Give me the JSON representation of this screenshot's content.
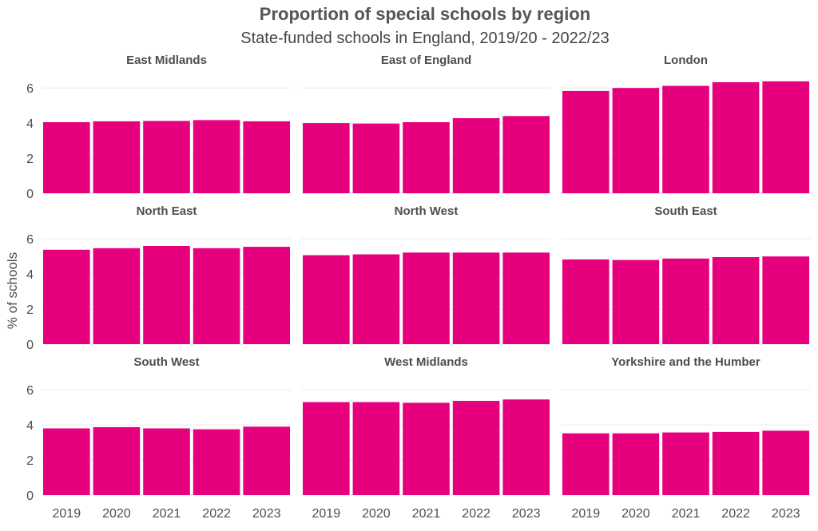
{
  "chart_data": {
    "type": "bar",
    "layout": "facet-grid-3x3",
    "title": "Proportion of special schools by region",
    "subtitle": "State-funded schools in England, 2019/20 - 2022/23",
    "xlabel": "",
    "ylabel": "% of schools",
    "ylim": [
      0,
      6.6
    ],
    "yticks": [
      "0",
      "2",
      "4",
      "6"
    ],
    "categories": [
      "2019",
      "2020",
      "2021",
      "2022",
      "2023"
    ],
    "bar_color": "#e6007e",
    "grid": true,
    "series": [
      {
        "name": "East Midlands",
        "values": [
          4.05,
          4.1,
          4.12,
          4.17,
          4.1
        ]
      },
      {
        "name": "East of England",
        "values": [
          4.0,
          3.97,
          4.05,
          4.28,
          4.4
        ]
      },
      {
        "name": "London",
        "values": [
          5.83,
          6.0,
          6.12,
          6.33,
          6.38
        ]
      },
      {
        "name": "North East",
        "values": [
          5.38,
          5.47,
          5.6,
          5.47,
          5.55
        ]
      },
      {
        "name": "North West",
        "values": [
          5.07,
          5.12,
          5.22,
          5.22,
          5.22
        ]
      },
      {
        "name": "South East",
        "values": [
          4.83,
          4.8,
          4.88,
          4.96,
          5.0
        ]
      },
      {
        "name": "South West",
        "values": [
          3.8,
          3.87,
          3.8,
          3.75,
          3.9
        ]
      },
      {
        "name": "West Midlands",
        "values": [
          5.3,
          5.3,
          5.26,
          5.37,
          5.45
        ]
      },
      {
        "name": "Yorkshire and the Humber",
        "values": [
          3.52,
          3.52,
          3.57,
          3.6,
          3.67
        ]
      }
    ]
  }
}
